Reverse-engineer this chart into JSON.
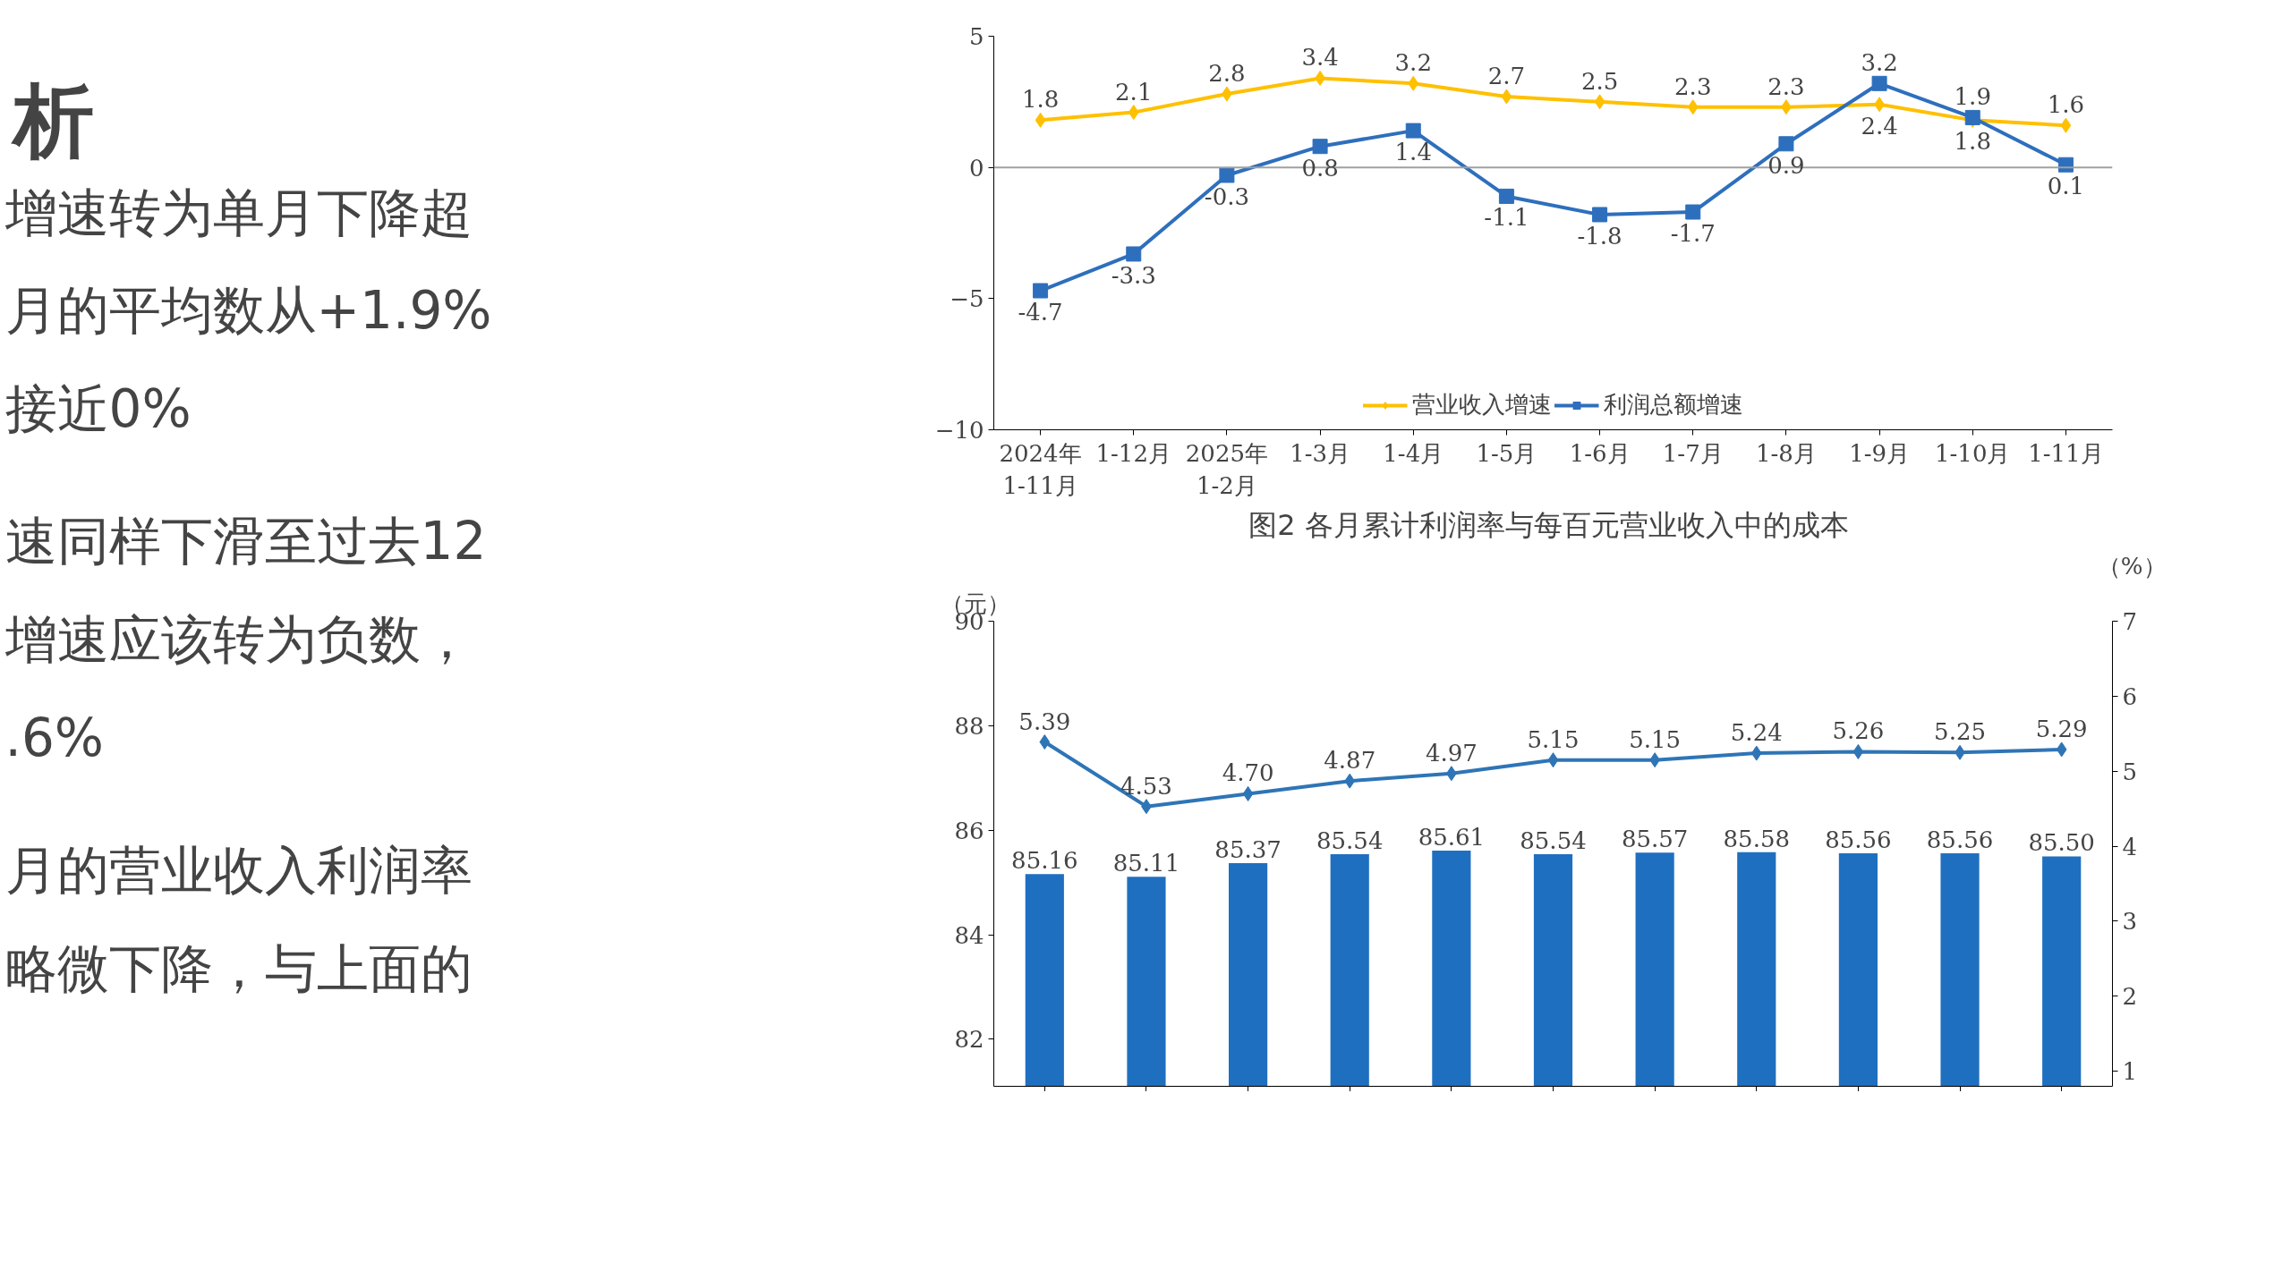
{
  "chart_data": [
    {
      "type": "other",
      "title": "析",
      "annotations": [
        "增速转为单月下降超",
        "月的平均数从+1.9%",
        "接近0%",
        "速同样下滑至过去12",
        "增速应该转为负数，",
        ".6%",
        "月的营业收入利润率",
        "略微下降，与上面的"
      ]
    },
    {
      "type": "line",
      "categories": [
        "2024年\n1-11月",
        "1-12月",
        "2025年\n1-2月",
        "1-3月",
        "1-4月",
        "1-5月",
        "1-6月",
        "1-7月",
        "1-8月",
        "1-9月",
        "1-10月",
        "1-11月"
      ],
      "series": [
        {
          "name": "营业收入增速",
          "color": "#ffc000",
          "marker": "diamond",
          "values": [
            1.8,
            2.1,
            2.8,
            3.4,
            3.2,
            2.7,
            2.5,
            2.3,
            2.3,
            2.4,
            1.8,
            1.6
          ]
        },
        {
          "name": "利润总额增速",
          "color": "#2e6fbd",
          "marker": "square",
          "values": [
            -4.7,
            -3.3,
            -0.3,
            0.8,
            1.4,
            -1.1,
            -1.8,
            -1.7,
            0.9,
            3.2,
            1.9,
            0.1
          ]
        }
      ],
      "ylim": [
        -10,
        5
      ],
      "yticks": [
        -10,
        -5,
        0,
        5
      ],
      "data_labels": true,
      "legend": "bottom",
      "grid": false,
      "ref_lines": [
        {
          "axis": "y",
          "value": 0,
          "color": "#a0a0a0"
        }
      ]
    },
    {
      "type": "bar",
      "title": "图2  各月累计利润率与每百元营业收入中的成本",
      "ylabel": "（元）",
      "y2label": "（%）",
      "categories": [
        null,
        null,
        null,
        null,
        null,
        null,
        null,
        null,
        null,
        null,
        null
      ],
      "series": [
        {
          "type": "bar",
          "color": "#1f6fc0",
          "values": [
            85.16,
            85.11,
            85.37,
            85.54,
            85.61,
            85.54,
            85.57,
            85.58,
            85.56,
            85.56,
            85.5
          ],
          "value_labels": [
            "85.16",
            "85.11",
            "85.37",
            "85.54",
            "85.61",
            "85.54",
            "85.57",
            "85.58",
            "85.56",
            "85.56",
            "85.50"
          ]
        },
        {
          "type": "line",
          "axis": "y2",
          "marker": "diamond",
          "color": "#2e75b6",
          "values": [
            5.39,
            4.53,
            4.7,
            4.87,
            4.97,
            5.15,
            5.15,
            5.24,
            5.26,
            5.25,
            5.29
          ],
          "value_labels": [
            "5.39",
            "4.53",
            "4.70",
            "4.87",
            "4.97",
            "5.15",
            "5.15",
            "5.24",
            "5.26",
            "5.25",
            "5.29"
          ]
        }
      ],
      "ylim": [
        81.1,
        90
      ],
      "yticks": [
        82,
        84,
        86,
        88,
        90
      ],
      "y2lim": [
        0.8,
        7
      ],
      "y2ticks": [
        1,
        2,
        3,
        4,
        5,
        6,
        7
      ],
      "tick_labels": "y",
      "grid": false
    }
  ]
}
